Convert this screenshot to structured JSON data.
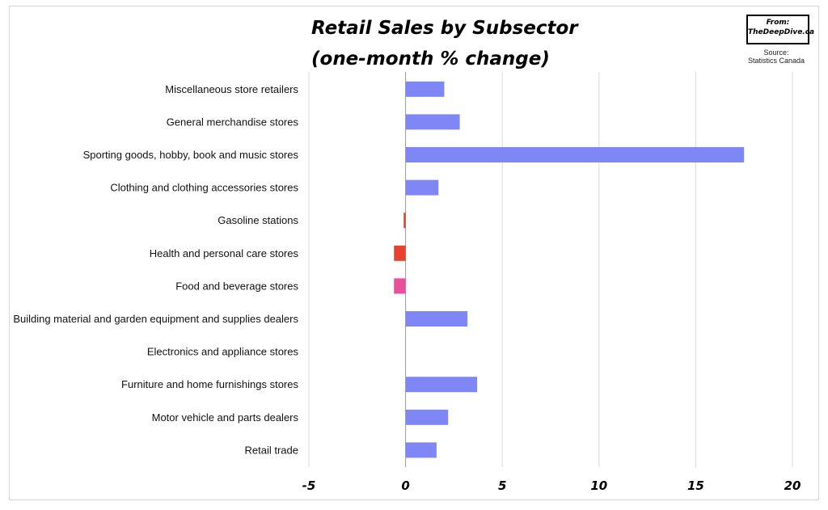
{
  "chart_data": {
    "type": "bar",
    "orientation": "horizontal",
    "title_line1": "Retail Sales by Subsector",
    "title_line2": "(one-month % change)",
    "categories": [
      "Miscellaneous store retailers",
      "General merchandise stores",
      "Sporting goods, hobby, book and music stores",
      "Clothing and clothing accessories stores",
      "Gasoline stations",
      "Health and personal care stores",
      "Food and beverage stores",
      "Building material and garden equipment and supplies dealers",
      "Electronics and appliance stores",
      "Furniture and home furnishings stores",
      "Motor vehicle and parts dealers",
      "Retail trade"
    ],
    "values": [
      2.0,
      2.8,
      17.5,
      1.7,
      -0.1,
      -0.6,
      -0.6,
      3.2,
      0.0,
      3.7,
      2.2,
      1.6
    ],
    "bar_colors": [
      "#7f86f5",
      "#7f86f5",
      "#7f86f5",
      "#7f86f5",
      "#e8412f",
      "#e8412f",
      "#ea4f9a",
      "#7f86f5",
      "#7f86f5",
      "#7f86f5",
      "#7f86f5",
      "#7f86f5"
    ],
    "xlim": [
      -5,
      20
    ],
    "xticks": [
      -5,
      0,
      5,
      10,
      15,
      20
    ],
    "grid": "vertical",
    "xlabel": "",
    "ylabel": ""
  },
  "branding": {
    "from_label": "From:",
    "site": "TheDeepDive.ca",
    "source_label": "Source:",
    "source_name": "Statistics Canada"
  },
  "colors": {
    "grid": "#d9d9d9",
    "axis": "#9a9a9a"
  }
}
